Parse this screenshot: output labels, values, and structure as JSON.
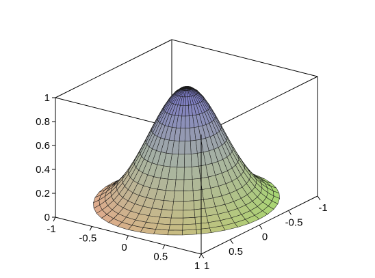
{
  "chart_data": {
    "type": "surface3d",
    "function": "z = exp(-3*(x^2 + y^2))",
    "x_range": [
      -1,
      1
    ],
    "y_range": [
      -1,
      1
    ],
    "z_range": [
      0,
      1
    ],
    "z_ticks": [
      0,
      0.2,
      0.4,
      0.6,
      0.8,
      1
    ],
    "z_tick_labels": [
      "0",
      "0.2",
      "0.4",
      "0.6",
      "0.8",
      "1"
    ],
    "left_axis_ticks": [
      -1,
      -0.5,
      0,
      0.5,
      1
    ],
    "left_axis_tick_labels": [
      "-1",
      "-0.5",
      "0",
      "0.5",
      "1"
    ],
    "right_axis_ticks": [
      -1,
      -0.5,
      0,
      0.5,
      1
    ],
    "right_axis_tick_labels": [
      "-1",
      "-0.5",
      "0",
      "0.5",
      "1"
    ],
    "domain": "disk",
    "mesh": {
      "radial_rings": 16,
      "angular_segments": 40
    },
    "colors": {
      "peak": "#7a78c8",
      "mid": "#a9b5a0",
      "base_warm": "#e8a88a",
      "base_green": "#a6de6a",
      "mesh_line": "#1a1a1a"
    },
    "bounding_box": true,
    "grid": false,
    "legend": "none"
  }
}
